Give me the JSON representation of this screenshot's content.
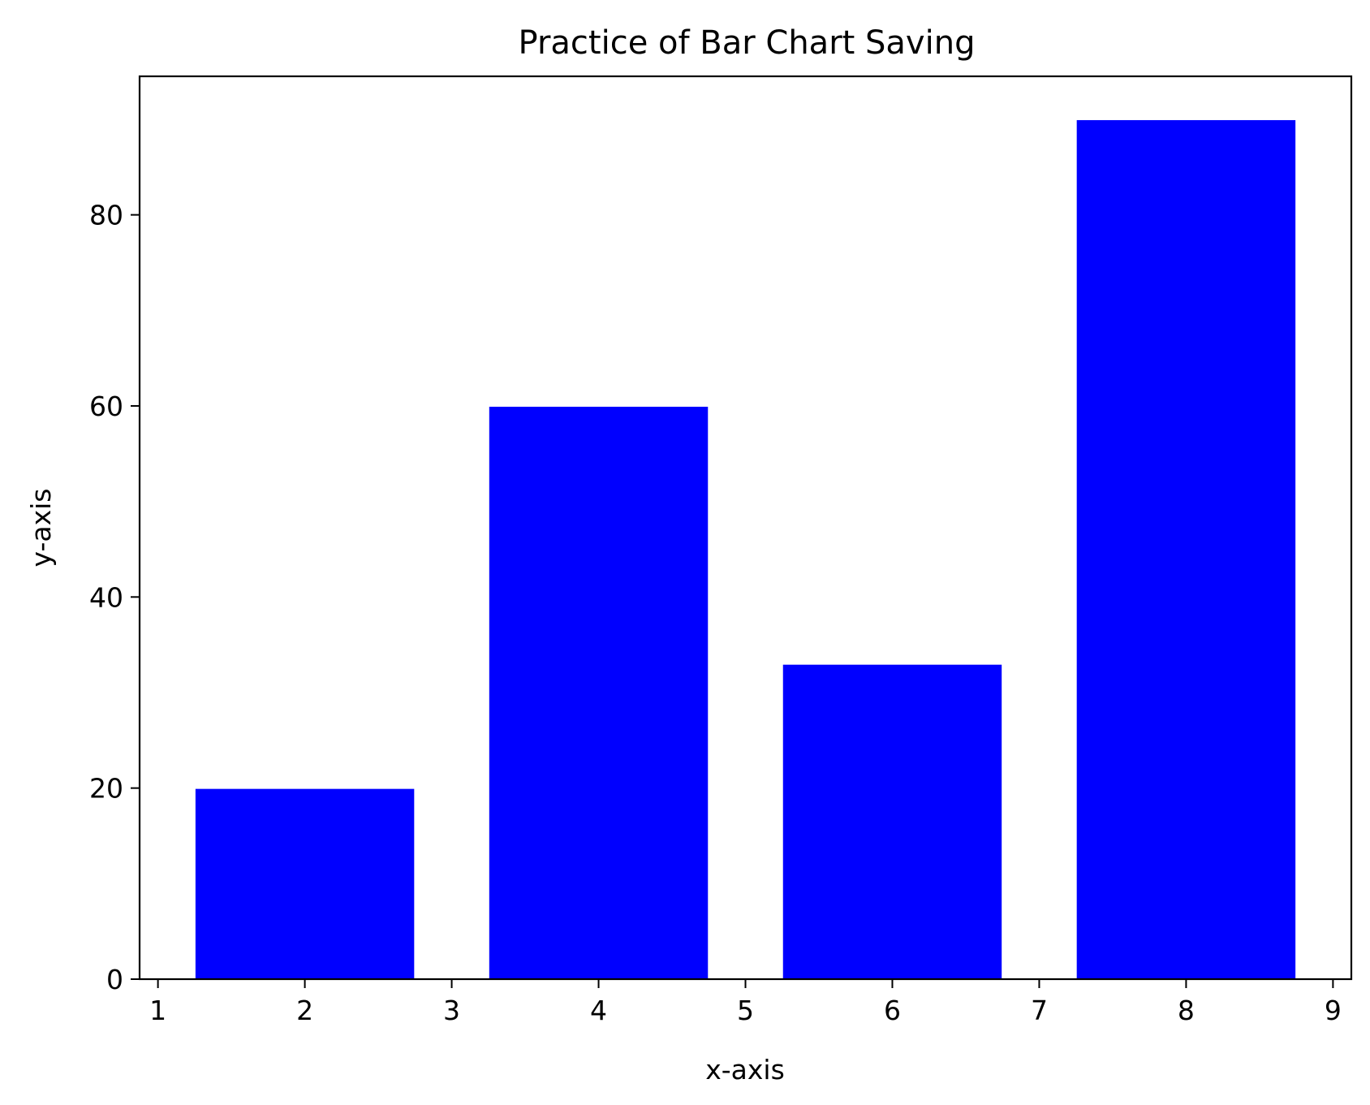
{
  "chart_data": {
    "type": "bar",
    "title": "Practice of Bar Chart Saving",
    "xlabel": "x-axis",
    "ylabel": "y-axis",
    "x": [
      2,
      4,
      6,
      8
    ],
    "values": [
      20,
      60,
      33,
      90
    ],
    "bar_width": 1.5,
    "xlim": [
      0.875,
      9.125
    ],
    "ylim": [
      0,
      94.5
    ],
    "xticks": [
      1,
      2,
      3,
      4,
      5,
      6,
      7,
      8,
      9
    ],
    "yticks": [
      0,
      20,
      40,
      60,
      80
    ],
    "grid": false,
    "bar_color": "#0000ff",
    "bar_edge_color": "#ffffff"
  }
}
